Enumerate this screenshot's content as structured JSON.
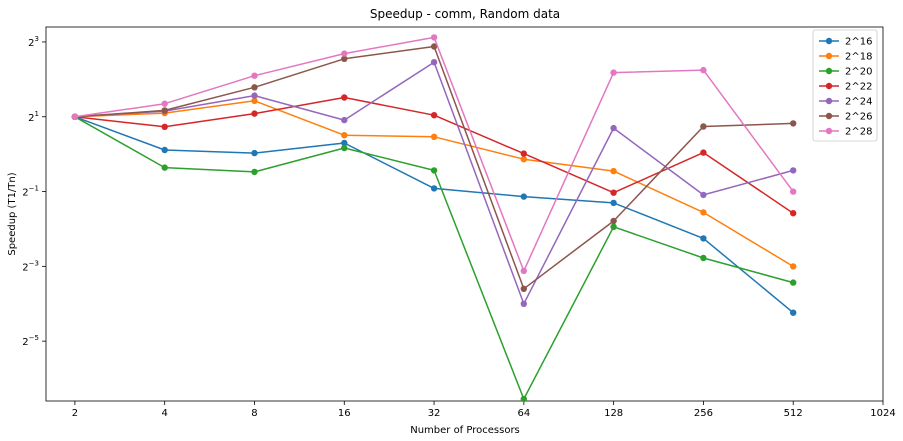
{
  "chart_data": {
    "type": "line",
    "title": "Speedup - comm, Random data",
    "xlabel": "Number of Processors",
    "ylabel": "Speedup (T1/Tn)",
    "x_scale": "log2",
    "y_scale": "log2",
    "xlim": [
      1.6,
      1024
    ],
    "ylim_log2": [
      -6.6,
      3.4
    ],
    "x_ticks": [
      {
        "value": 2,
        "label": "2"
      },
      {
        "value": 4,
        "label": "4"
      },
      {
        "value": 8,
        "label": "8"
      },
      {
        "value": 16,
        "label": "16"
      },
      {
        "value": 32,
        "label": "32"
      },
      {
        "value": 64,
        "label": "64"
      },
      {
        "value": 128,
        "label": "128"
      },
      {
        "value": 256,
        "label": "256"
      },
      {
        "value": 512,
        "label": "512"
      },
      {
        "value": 1024,
        "label": "1024"
      }
    ],
    "y_ticks": [
      {
        "exp": 3,
        "label_base": "2",
        "label_exp": "3"
      },
      {
        "exp": 1,
        "label_base": "2",
        "label_exp": "1"
      },
      {
        "exp": -1,
        "label_base": "2",
        "label_exp": "−1"
      },
      {
        "exp": -3,
        "label_base": "2",
        "label_exp": "−3"
      },
      {
        "exp": -5,
        "label_base": "2",
        "label_exp": "−5"
      }
    ],
    "grid": false,
    "legend_position": "top-right",
    "x": [
      2,
      4,
      8,
      16,
      32,
      64,
      128,
      256,
      512
    ],
    "series": [
      {
        "name": "2^16",
        "color": "#1f77b4",
        "values": [
          2.0,
          1.08,
          1.02,
          1.23,
          0.53,
          0.455,
          0.405,
          0.21,
          0.053
        ]
      },
      {
        "name": "2^18",
        "color": "#ff7f0e",
        "values": [
          2.0,
          2.14,
          2.69,
          1.42,
          1.38,
          0.91,
          0.73,
          0.34,
          0.125
        ]
      },
      {
        "name": "2^20",
        "color": "#2ca02c",
        "values": [
          2.0,
          0.78,
          0.72,
          1.12,
          0.74,
          0.0107,
          0.26,
          0.146,
          0.0925
        ]
      },
      {
        "name": "2^22",
        "color": "#d62728",
        "values": [
          2.0,
          1.66,
          2.12,
          2.86,
          2.06,
          1.01,
          0.49,
          1.03,
          0.335
        ]
      },
      {
        "name": "2^24",
        "color": "#9467bd",
        "values": [
          2.0,
          2.22,
          2.96,
          1.88,
          5.5,
          0.0625,
          1.62,
          0.47,
          0.74
        ]
      },
      {
        "name": "2^26",
        "color": "#8c564b",
        "values": [
          2.0,
          2.25,
          3.45,
          5.85,
          7.35,
          0.0825,
          0.29,
          1.67,
          1.77
        ]
      },
      {
        "name": "2^28",
        "color": "#e377c2",
        "values": [
          2.0,
          2.55,
          4.28,
          6.45,
          8.7,
          0.115,
          4.53,
          4.75,
          0.5
        ]
      }
    ]
  }
}
